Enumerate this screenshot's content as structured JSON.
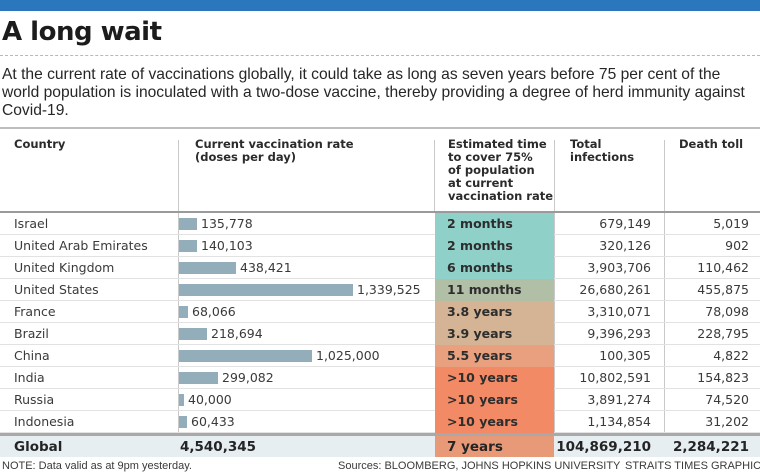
{
  "header": {
    "title": "A long wait",
    "intro": "At the current rate of vaccinations globally, it could take as long as seven years before 75 per cent of the world population is inoculated with a two-dose vaccine, thereby providing a degree of herd immunity against Covid-19."
  },
  "columns": {
    "country": "Country",
    "rate": "Current vaccination rate\n(doses per day)",
    "time": "Estimated time\nto cover 75%\nof population\nat current\nvaccination rate",
    "infections": "Total\ninfections",
    "deaths": "Death toll"
  },
  "colors": {
    "brand_blue": "#2a77bd",
    "bar": "#94adbb",
    "time_scale": {
      "2 months": "#8fd0c8",
      "6 months": "#8fd0c8",
      "11 months": "#b2bfa7",
      "3.8 years": "#d4b495",
      "3.9 years": "#d4b495",
      "5.5 years": "#e8a07f",
      ">10 years": "#f28a66",
      "7 years": "#e89a78"
    }
  },
  "chart_data": {
    "type": "table",
    "title": "A long wait",
    "columns": [
      "Country",
      "Current vaccination rate (doses per day)",
      "Estimated time to cover 75% of population at current vaccination rate",
      "Total infections",
      "Death toll"
    ],
    "rows": [
      {
        "country": "Israel",
        "rate": 135778,
        "rate_label": "135,778",
        "time": "2 months",
        "infections": "679,149",
        "deaths": "5,019"
      },
      {
        "country": "United Arab Emirates",
        "rate": 140103,
        "rate_label": "140,103",
        "time": "2 months",
        "infections": "320,126",
        "deaths": "902"
      },
      {
        "country": "United Kingdom",
        "rate": 438421,
        "rate_label": "438,421",
        "time": "6 months",
        "infections": "3,903,706",
        "deaths": "110,462"
      },
      {
        "country": "United States",
        "rate": 1339525,
        "rate_label": "1,339,525",
        "time": "11 months",
        "infections": "26,680,261",
        "deaths": "455,875"
      },
      {
        "country": "France",
        "rate": 68066,
        "rate_label": "68,066",
        "time": "3.8 years",
        "infections": "3,310,071",
        "deaths": "78,098"
      },
      {
        "country": "Brazil",
        "rate": 218694,
        "rate_label": "218,694",
        "time": "3.9 years",
        "infections": "9,396,293",
        "deaths": "228,795"
      },
      {
        "country": "China",
        "rate": 1025000,
        "rate_label": "1,025,000",
        "time": "5.5 years",
        "infections": "100,305",
        "deaths": "4,822"
      },
      {
        "country": "India",
        "rate": 299082,
        "rate_label": "299,082",
        "time": ">10 years",
        "infections": "10,802,591",
        "deaths": "154,823"
      },
      {
        "country": "Russia",
        "rate": 40000,
        "rate_label": "40,000",
        "time": ">10 years",
        "infections": "3,891,274",
        "deaths": "74,520"
      },
      {
        "country": "Indonesia",
        "rate": 60433,
        "rate_label": "60,433",
        "time": ">10 years",
        "infections": "1,134,854",
        "deaths": "31,202"
      }
    ],
    "total": {
      "country": "Global",
      "rate_label": "4,540,345",
      "time": "7 years",
      "infections": "104,869,210",
      "deaths": "2,284,221"
    },
    "bar_max": 1339525
  },
  "footer": {
    "note": "NOTE: Data valid as at 9pm yesterday.",
    "sources": "Sources: BLOOMBERG, JOHNS HOPKINS UNIVERSITY",
    "credit": "STRAITS TIMES GRAPHICS"
  }
}
